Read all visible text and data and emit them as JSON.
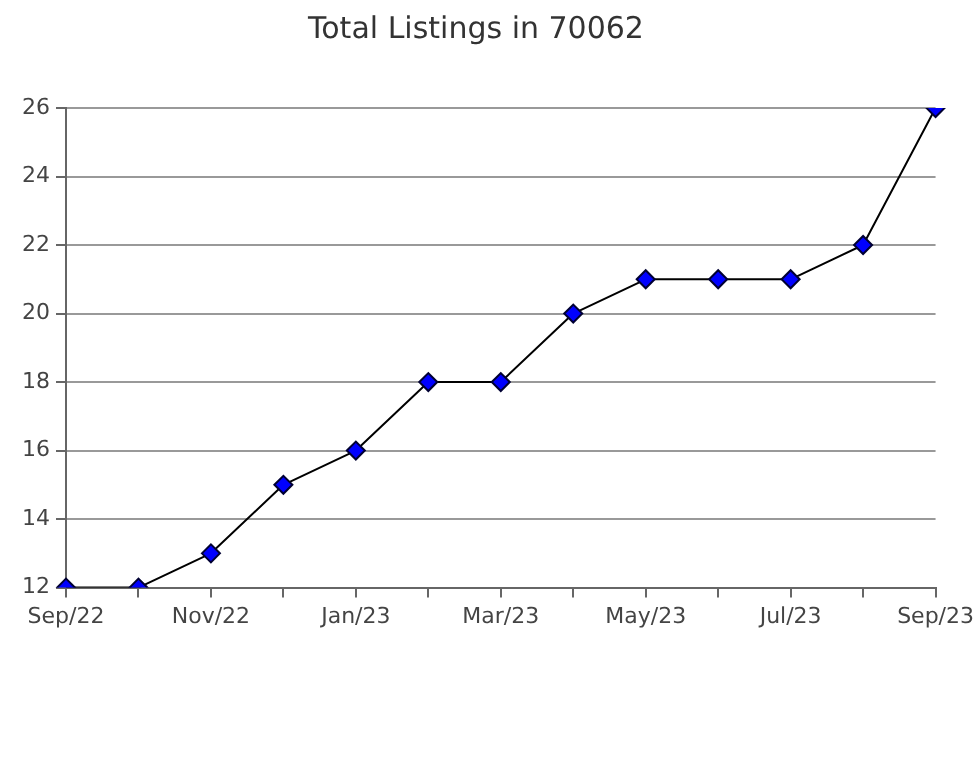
{
  "chart_data": {
    "type": "line",
    "title": "Total Listings in 70062",
    "categories": [
      "Sep/22",
      null,
      "Nov/22",
      null,
      "Jan/23",
      null,
      "Mar/23",
      null,
      "May/23",
      null,
      "Jul/23",
      null,
      "Sep/23"
    ],
    "series": [
      {
        "color": "#0000ff",
        "values": [
          12,
          12,
          13,
          15,
          16,
          18,
          18,
          20,
          21,
          21,
          21,
          22,
          26
        ]
      }
    ],
    "ylim": [
      12,
      26
    ],
    "yticks": [
      12,
      14,
      16,
      18,
      20,
      22,
      24,
      26
    ],
    "grid": "y",
    "legend": false,
    "marker": "diamond",
    "line_style": "solid"
  }
}
